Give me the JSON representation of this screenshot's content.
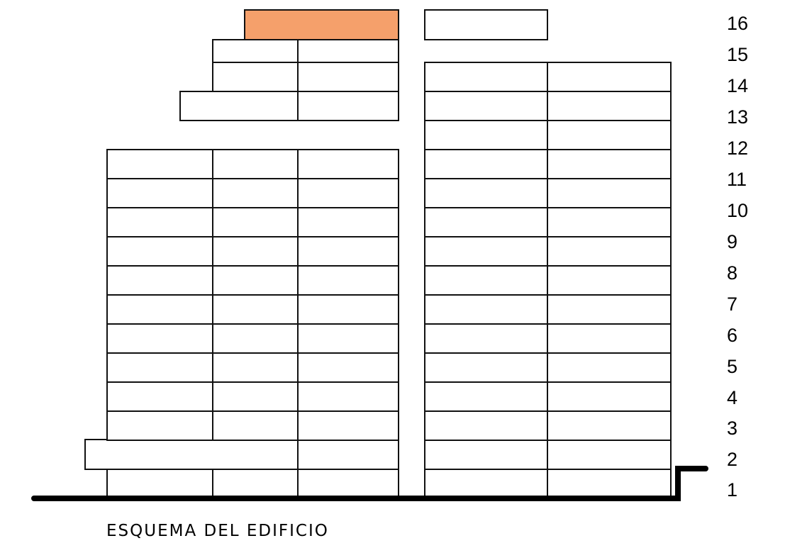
{
  "diagram": {
    "caption": "ESQUEMA DEL EDIFICIO",
    "floor_labels": [
      "1",
      "2",
      "3",
      "4",
      "5",
      "6",
      "7",
      "8",
      "9",
      "10",
      "11",
      "12",
      "13",
      "14",
      "15",
      "16"
    ],
    "highlighted_unit": {
      "floor": 16,
      "tower": "left"
    },
    "colors": {
      "highlight": "#f5a06b",
      "stroke": "#111111",
      "ground": "#000000",
      "background": "#ffffff"
    }
  }
}
